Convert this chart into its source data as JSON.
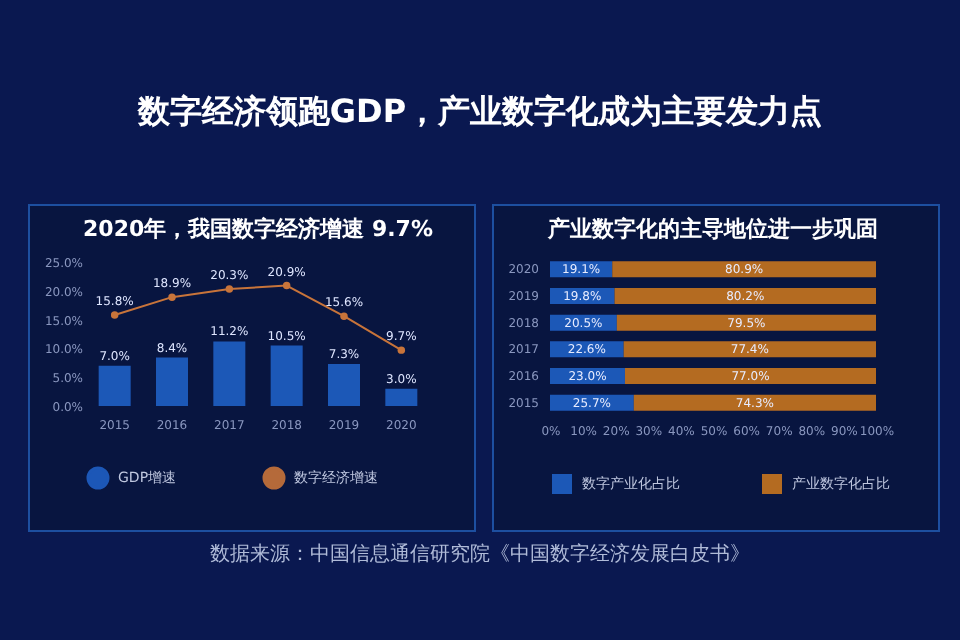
{
  "chart_data": [
    {
      "type": "other",
      "title": "数字经济领跑GDP，产业数字化成为主要发力点",
      "annotations": [
        "数据来源：中国信息通信研究院《中国数字经济发展白皮书》"
      ]
    },
    {
      "type": "bar",
      "title": "2020年，我国数字经济增速 9.7%",
      "categories": [
        "2015",
        "2016",
        "2017",
        "2018",
        "2019",
        "2020"
      ],
      "series": [
        {
          "name": "GDP增速",
          "type": "bar",
          "color": "#1f5fc4",
          "values": [
            7.0,
            8.4,
            11.2,
            10.5,
            7.3,
            3.0
          ],
          "value_labels": [
            "7.0%",
            "8.4%",
            "11.2%",
            "10.5%",
            "7.3%",
            "3.0%"
          ]
        },
        {
          "name": "数字经济增速",
          "type": "line",
          "color": "#c8743a",
          "values": [
            15.8,
            18.9,
            20.3,
            20.9,
            15.6,
            9.7
          ],
          "value_labels": [
            "15.8%",
            "18.9%",
            "20.3%",
            "20.9%",
            "15.6%",
            "9.7%"
          ]
        }
      ],
      "ylim": [
        0,
        25
      ],
      "yticks": [
        {
          "value": 0,
          "label": "0.0%"
        },
        {
          "value": 5,
          "label": "5.0%"
        },
        {
          "value": 10,
          "label": "10.0%"
        },
        {
          "value": 15,
          "label": "15.0%"
        },
        {
          "value": 20,
          "label": "20.0%"
        },
        {
          "value": 25,
          "label": "25.0%"
        }
      ],
      "marker": "circle",
      "legend": "bottom",
      "grid": false
    },
    {
      "type": "bar",
      "orientation": "horizontal",
      "stacked": true,
      "title": "产业数字化的主导地位进一步巩固",
      "categories": [
        "2020",
        "2019",
        "2018",
        "2017",
        "2016",
        "2015"
      ],
      "series": [
        {
          "name": "数字产业化占比",
          "color": "#1f5fc4",
          "values": [
            19.1,
            19.8,
            20.5,
            22.6,
            23.0,
            25.7
          ],
          "value_labels": [
            "19.1%",
            "19.8%",
            "20.5%",
            "22.6%",
            "23.0%",
            "25.7%"
          ]
        },
        {
          "name": "产业数字化占比",
          "color": "#c8741e",
          "values": [
            80.9,
            80.2,
            79.5,
            77.4,
            77.0,
            74.3
          ],
          "value_labels": [
            "80.9%",
            "80.2%",
            "79.5%",
            "77.4%",
            "77.0%",
            "74.3%"
          ]
        }
      ],
      "xlim": [
        0,
        100
      ],
      "xticks": [
        {
          "value": 0,
          "label": "0%"
        },
        {
          "value": 10,
          "label": "10%"
        },
        {
          "value": 20,
          "label": "20%"
        },
        {
          "value": 30,
          "label": "30%"
        },
        {
          "value": 40,
          "label": "40%"
        },
        {
          "value": 50,
          "label": "50%"
        },
        {
          "value": 60,
          "label": "60%"
        },
        {
          "value": 70,
          "label": "70%"
        },
        {
          "value": 80,
          "label": "80%"
        },
        {
          "value": 90,
          "label": "90%"
        },
        {
          "value": 100,
          "label": "100%"
        }
      ],
      "legend": "bottom",
      "grid": false
    }
  ]
}
